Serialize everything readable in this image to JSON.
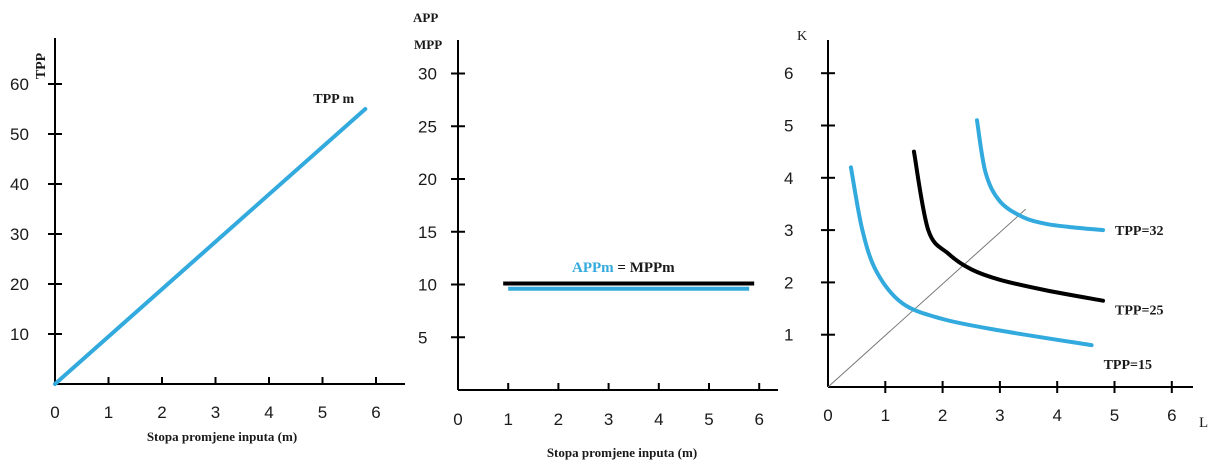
{
  "colors": {
    "blue": "#33aadd",
    "black": "#000000",
    "guide": "#777777"
  },
  "chart_data": [
    {
      "type": "line",
      "ylabel": "TPP",
      "xlabel": "Stopa promjene inputa (m)",
      "xticks": [
        "0",
        "1",
        "2",
        "3",
        "4",
        "5",
        "6"
      ],
      "yticks": [
        "10",
        "20",
        "30",
        "40",
        "50",
        "60"
      ],
      "xlim": [
        0,
        6.5
      ],
      "ylim": [
        0,
        65
      ],
      "series": [
        {
          "name": "TPP m",
          "x": [
            0,
            5.8
          ],
          "y": [
            0,
            55
          ]
        }
      ]
    },
    {
      "type": "line",
      "ylabel_top": "APP",
      "ylabel_bottom": "MPP",
      "xlabel": "Stopa promjene inputa (m)",
      "xticks": [
        "0",
        "1",
        "2",
        "3",
        "4",
        "5",
        "6"
      ],
      "yticks": [
        "5",
        "10",
        "15",
        "20",
        "25",
        "30"
      ],
      "xlim": [
        0,
        6.5
      ],
      "ylim": [
        0,
        33
      ],
      "series": [
        {
          "name": "APPm",
          "x": [
            1,
            5.8
          ],
          "y": [
            9.6,
            9.6
          ]
        },
        {
          "name": "MPPm",
          "x": [
            0.9,
            5.9
          ],
          "y": [
            10.1,
            10.1
          ]
        }
      ],
      "legend_label": {
        "blue_part": "APPm",
        "black_part": " = MPPm"
      }
    },
    {
      "type": "line",
      "ylabel": "K",
      "xlabel": "L",
      "xticks": [
        "0",
        "1",
        "2",
        "3",
        "4",
        "5",
        "6"
      ],
      "yticks": [
        "1",
        "2",
        "3",
        "4",
        "5",
        "6"
      ],
      "xlim": [
        0,
        6.6
      ],
      "ylim": [
        0,
        6.6
      ],
      "series": [
        {
          "name": "TPP=15",
          "x": [
            0.4,
            0.6,
            0.85,
            1.3,
            2.0,
            3.0,
            4.6
          ],
          "y": [
            4.2,
            3.0,
            2.2,
            1.6,
            1.3,
            1.08,
            0.8
          ]
        },
        {
          "name": "TPP=25",
          "x": [
            1.5,
            1.75,
            2.1,
            2.5,
            3.0,
            3.8,
            4.8
          ],
          "y": [
            4.5,
            3.0,
            2.55,
            2.25,
            2.05,
            1.85,
            1.65
          ]
        },
        {
          "name": "TPP=32",
          "x": [
            2.6,
            2.75,
            3.0,
            3.4,
            3.8,
            4.3,
            4.8
          ],
          "y": [
            5.1,
            4.1,
            3.55,
            3.25,
            3.12,
            3.05,
            3.0
          ]
        }
      ],
      "guide_line": {
        "x": [
          0,
          3.45
        ],
        "y": [
          0,
          3.4
        ]
      }
    }
  ]
}
